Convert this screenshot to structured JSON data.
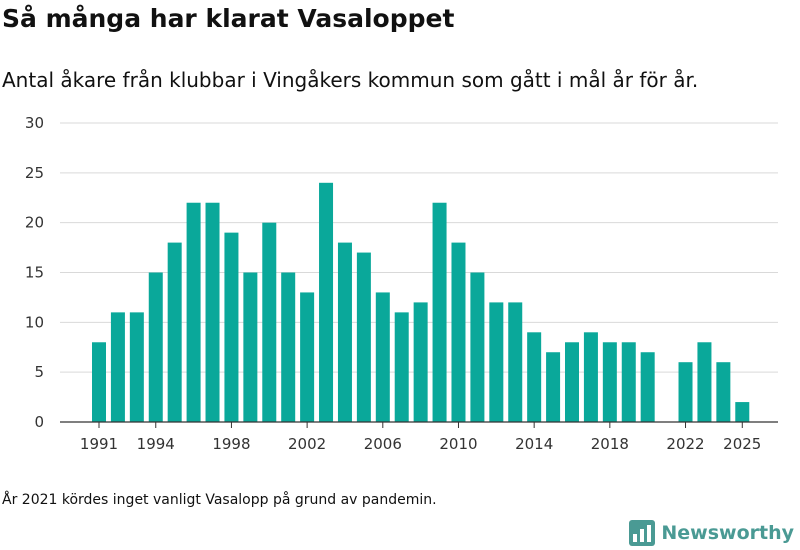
{
  "chart_data": {
    "type": "bar",
    "title": "Så många har klarat Vasaloppet",
    "subtitle": "Antal åkare från klubbar i Vingåkers kommun som gått i mål år för år.",
    "xlabel": "",
    "ylabel": "",
    "ylim": [
      0,
      30
    ],
    "yticks": [
      0,
      5,
      10,
      15,
      20,
      25,
      30
    ],
    "xticks": [
      1991,
      1994,
      1998,
      2002,
      2006,
      2010,
      2014,
      2018,
      2022,
      2025
    ],
    "grid": true,
    "bar_color": "#0aa89a",
    "x": [
      1991,
      1992,
      1993,
      1994,
      1995,
      1996,
      1997,
      1998,
      1999,
      2000,
      2001,
      2002,
      2003,
      2004,
      2005,
      2006,
      2007,
      2008,
      2009,
      2010,
      2011,
      2012,
      2013,
      2014,
      2015,
      2016,
      2017,
      2018,
      2019,
      2020,
      2021,
      2022,
      2023,
      2024,
      2025
    ],
    "values": [
      8,
      11,
      11,
      15,
      18,
      22,
      22,
      19,
      15,
      20,
      15,
      13,
      24,
      18,
      17,
      13,
      11,
      12,
      22,
      18,
      15,
      12,
      12,
      9,
      7,
      8,
      9,
      8,
      8,
      7,
      null,
      6,
      8,
      6,
      2
    ]
  },
  "footnote": "År 2021 kördes inget vanligt Vasalopp på grund av pandemin.",
  "brand": {
    "name": "Newsworthy",
    "color": "#4a9a94"
  }
}
